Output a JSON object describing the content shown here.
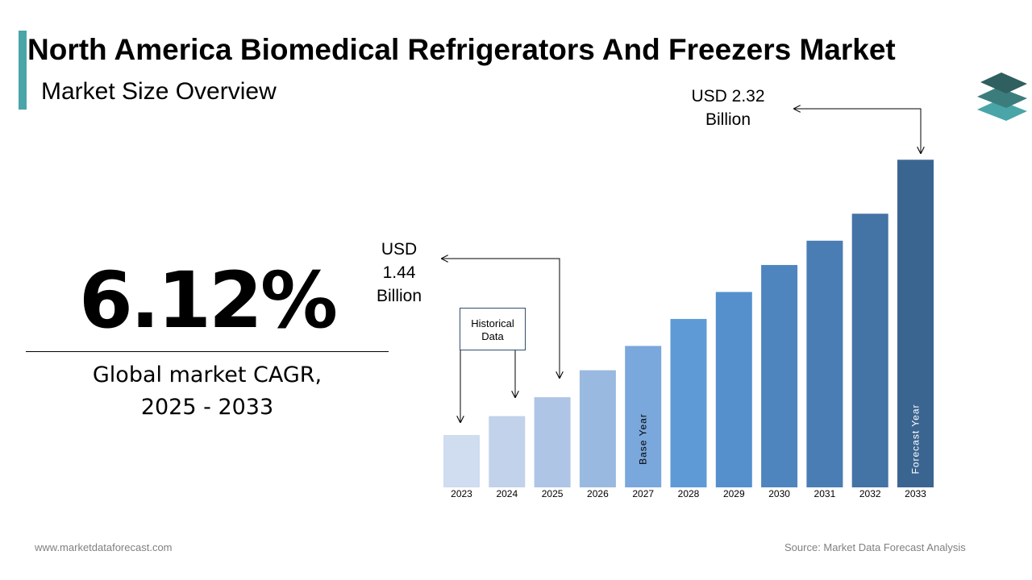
{
  "header": {
    "title": "North America Biomedical Refrigerators And Freezers Market",
    "subtitle": "Market Size Overview"
  },
  "kpi": {
    "cagr_value": "6.12%",
    "cagr_label_line1": "Global market CAGR,",
    "cagr_label_line2": "2025 - 2033"
  },
  "callouts": {
    "start_line1": "USD",
    "start_line2": "1.44",
    "start_line3": "Billion",
    "end_line1": "USD 2.32",
    "end_line2": "Billion",
    "historical_line1": "Historical",
    "historical_line2": "Data"
  },
  "chart_data": {
    "type": "bar",
    "categories": [
      "2023",
      "2024",
      "2025",
      "2026",
      "2027",
      "2028",
      "2029",
      "2030",
      "2031",
      "2032",
      "2033"
    ],
    "values": [
      1.3,
      1.37,
      1.44,
      1.54,
      1.63,
      1.73,
      1.83,
      1.93,
      2.02,
      2.12,
      2.32
    ],
    "bar_labels": {
      "2027": "Base Year",
      "2033": "Forecast Year"
    },
    "colors": [
      "#d0dcef",
      "#c1d2ea",
      "#aec5e5",
      "#99b9e0",
      "#7aa7dc",
      "#5e9bd6",
      "#5590cc",
      "#4f85bf",
      "#4a7db3",
      "#4473a6",
      "#3b6591"
    ]
  },
  "footer": {
    "website": "www.marketdataforecast.com",
    "source": "Source: Market Data Forecast Analysis"
  },
  "icons": {
    "logo": "stacked-layers-logo-icon"
  }
}
